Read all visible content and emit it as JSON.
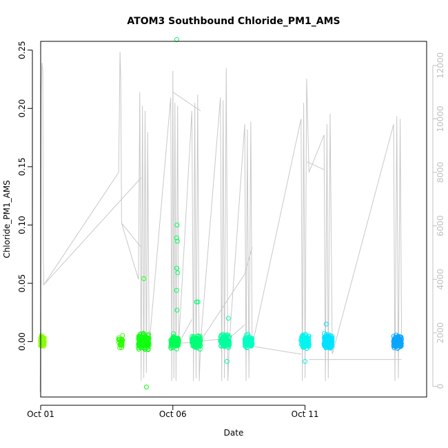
{
  "chart_data": {
    "type": "scatter",
    "title": "ATOM3 Southbound Chloride_PM1_AMS",
    "xlabel": "Date",
    "ylabel": "Chloride_PM1_AMS",
    "xlim": [
      0,
      14.6
    ],
    "ylim": [
      -0.0475,
      0.2575
    ],
    "x_ticks": [
      {
        "value": 0,
        "label": "Oct 01"
      },
      {
        "value": 5,
        "label": "Oct 06"
      },
      {
        "value": 10,
        "label": "Oct 11"
      }
    ],
    "y_ticks": [
      0.0,
      0.05,
      0.1,
      0.15,
      0.2,
      0.25
    ],
    "y_tick_labels": [
      "0.00",
      "0.05",
      "0.10",
      "0.15",
      "0.20",
      "0.25"
    ],
    "y2lim": [
      -400,
      12900
    ],
    "y2_ticks": [
      0,
      2000,
      4000,
      6000,
      8000,
      10000,
      12000
    ],
    "y2_tick_labels": [
      "0",
      "2000",
      "4000",
      "6000",
      "8000",
      "10000",
      "12000"
    ],
    "grid": false,
    "legend": "none",
    "colors": {
      "altitude_line": "#c8c8c8",
      "axis": "#000000",
      "right_axis": "#c0c0c0"
    },
    "flight_segments": [
      {
        "x0": -0.02,
        "x1": 0.14,
        "color": "#88ff00",
        "n": 50,
        "spread": 0.0045
      },
      {
        "x0": 2.95,
        "x1": 3.1,
        "color": "#2eff00",
        "n": 30,
        "spread": 0.0045
      },
      {
        "x0": 3.7,
        "x1": 4.1,
        "color": "#10ff10",
        "n": 140,
        "spread": 0.006
      },
      {
        "x0": 4.92,
        "x1": 5.22,
        "color": "#00ff55",
        "n": 90,
        "spread": 0.005
      },
      {
        "x0": 5.72,
        "x1": 6.05,
        "color": "#00ff77",
        "n": 110,
        "spread": 0.005
      },
      {
        "x0": 6.8,
        "x1": 7.14,
        "color": "#00ff9e",
        "n": 110,
        "spread": 0.005
      },
      {
        "x0": 7.72,
        "x1": 8.0,
        "color": "#00ffc0",
        "n": 90,
        "spread": 0.005
      },
      {
        "x0": 9.85,
        "x1": 10.15,
        "color": "#00f5ef",
        "n": 90,
        "spread": 0.005
      },
      {
        "x0": 10.72,
        "x1": 11.03,
        "color": "#00e2ff",
        "n": 110,
        "spread": 0.0055
      },
      {
        "x0": 13.35,
        "x1": 13.65,
        "color": "#0aa6ff",
        "n": 130,
        "spread": 0.005
      }
    ],
    "outliers": [
      {
        "x": 3.9,
        "y": 0.054,
        "color": "#10ff10"
      },
      {
        "x": 4.0,
        "y": -0.039,
        "color": "#10ff10"
      },
      {
        "x": 5.15,
        "y": 0.259,
        "color": "#00ff55"
      },
      {
        "x": 5.16,
        "y": 0.1,
        "color": "#00ff55"
      },
      {
        "x": 5.14,
        "y": 0.089,
        "color": "#00ff55"
      },
      {
        "x": 5.17,
        "y": 0.086,
        "color": "#00ff55"
      },
      {
        "x": 5.15,
        "y": 0.063,
        "color": "#00ff55"
      },
      {
        "x": 5.18,
        "y": 0.059,
        "color": "#00ff55"
      },
      {
        "x": 5.14,
        "y": 0.044,
        "color": "#00ff55"
      },
      {
        "x": 5.16,
        "y": 0.027,
        "color": "#00ff55"
      },
      {
        "x": 5.9,
        "y": 0.034,
        "color": "#00ff77"
      },
      {
        "x": 5.95,
        "y": 0.034,
        "color": "#00ff77"
      },
      {
        "x": 7.1,
        "y": 0.02,
        "color": "#00ff9e"
      },
      {
        "x": 7.05,
        "y": -0.017,
        "color": "#00ff9e"
      },
      {
        "x": 10.0,
        "y": -0.017,
        "color": "#00f5ef"
      },
      {
        "x": 10.8,
        "y": 0.015,
        "color": "#00e2ff"
      }
    ],
    "altitude_series": [
      [
        -0.02,
        -200
      ],
      [
        0.0,
        3000
      ],
      [
        0.02,
        11000
      ],
      [
        0.05,
        12100
      ],
      [
        0.08,
        11800
      ],
      [
        0.1,
        4800
      ],
      [
        0.12,
        3800
      ],
      [
        2.95,
        8000
      ],
      [
        3.0,
        12500
      ],
      [
        3.03,
        11500
      ],
      [
        3.06,
        6100
      ],
      [
        3.7,
        4000
      ],
      [
        3.75,
        11000
      ],
      [
        3.8,
        200
      ],
      [
        3.85,
        10500
      ],
      [
        3.9,
        300
      ],
      [
        3.95,
        10300
      ],
      [
        4.0,
        500
      ],
      [
        4.05,
        9500
      ],
      [
        4.1,
        1500
      ],
      [
        4.92,
        10800
      ],
      [
        4.96,
        200
      ],
      [
        5.0,
        11800
      ],
      [
        5.04,
        300
      ],
      [
        5.08,
        10600
      ],
      [
        5.12,
        200
      ],
      [
        5.18,
        10500
      ],
      [
        5.22,
        1600
      ],
      [
        5.72,
        10300
      ],
      [
        5.78,
        200
      ],
      [
        5.83,
        10600
      ],
      [
        5.88,
        300
      ],
      [
        5.94,
        10900
      ],
      [
        6.0,
        200
      ],
      [
        6.05,
        1700
      ],
      [
        6.8,
        10800
      ],
      [
        6.85,
        200
      ],
      [
        6.9,
        10700
      ],
      [
        6.95,
        300
      ],
      [
        7.02,
        11900
      ],
      [
        7.08,
        200
      ],
      [
        7.14,
        1700
      ],
      [
        7.72,
        9800
      ],
      [
        7.77,
        200
      ],
      [
        7.82,
        9600
      ],
      [
        7.88,
        300
      ],
      [
        7.95,
        9900
      ],
      [
        8.0,
        1500
      ],
      [
        9.85,
        10000
      ],
      [
        9.9,
        200
      ],
      [
        9.95,
        10600
      ],
      [
        10.0,
        300
      ],
      [
        10.06,
        11500
      ],
      [
        10.15,
        8000
      ],
      [
        10.72,
        9400
      ],
      [
        10.77,
        200
      ],
      [
        10.83,
        9800
      ],
      [
        10.88,
        300
      ],
      [
        10.95,
        10200
      ],
      [
        11.03,
        1200
      ],
      [
        13.35,
        9800
      ],
      [
        13.4,
        200
      ],
      [
        13.47,
        10100
      ],
      [
        13.53,
        300
      ],
      [
        13.6,
        10000
      ],
      [
        13.65,
        1900
      ]
    ],
    "altitude_connectors": [
      [
        [
          0.12,
          3800
        ],
        [
          3.8,
          7800
        ]
      ],
      [
        [
          3.06,
          6100
        ],
        [
          3.8,
          5200
        ]
      ],
      [
        [
          4.1,
          1500
        ],
        [
          3.7,
          1700
        ]
      ],
      [
        [
          5.22,
          1600
        ],
        [
          5.72,
          2500
        ]
      ],
      [
        [
          5.0,
          11000
        ],
        [
          6.05,
          10300
        ]
      ],
      [
        [
          5.2,
          1600
        ],
        [
          7.14,
          1800
        ]
      ],
      [
        [
          6.05,
          1700
        ],
        [
          7.72,
          4200
        ]
      ],
      [
        [
          7.14,
          1800
        ],
        [
          7.72,
          2300
        ]
      ],
      [
        [
          7.72,
          4200
        ],
        [
          8.0,
          5200
        ]
      ],
      [
        [
          8.0,
          1500
        ],
        [
          9.85,
          1200
        ]
      ],
      [
        [
          10.06,
          8400
        ],
        [
          10.72,
          8100
        ]
      ],
      [
        [
          10.15,
          1000
        ],
        [
          13.65,
          1000
        ]
      ]
    ]
  }
}
